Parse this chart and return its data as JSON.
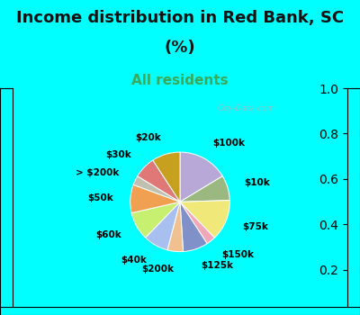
{
  "title_line1": "Income distribution in Red Bank, SC",
  "title_line2": "(%)",
  "subtitle": "All residents",
  "bg_color": "#00FFFF",
  "chart_bg_color": "#d8efe0",
  "labels": [
    "$100k",
    "$10k",
    "$75k",
    "$150k",
    "$125k",
    "$200k",
    "$40k",
    "$60k",
    "$50k",
    "> $200k",
    "$30k",
    "$20k"
  ],
  "sizes": [
    16,
    8,
    13,
    3,
    8,
    5,
    8,
    9,
    9,
    3,
    7,
    9
  ],
  "colors": [
    "#b8a8d8",
    "#9ab880",
    "#f0e878",
    "#f0a8b8",
    "#8090c8",
    "#f0c090",
    "#a8c0f0",
    "#c8f070",
    "#f0a050",
    "#c0c0b0",
    "#e07878",
    "#c8a020"
  ],
  "startangle": 90,
  "label_fontsize": 7.5,
  "title_fontsize": 13,
  "subtitle_fontsize": 11,
  "watermark": "City-Data.com",
  "title_color": "#111111",
  "subtitle_color": "#3aaa5a",
  "watermark_color": "#aabbbb"
}
